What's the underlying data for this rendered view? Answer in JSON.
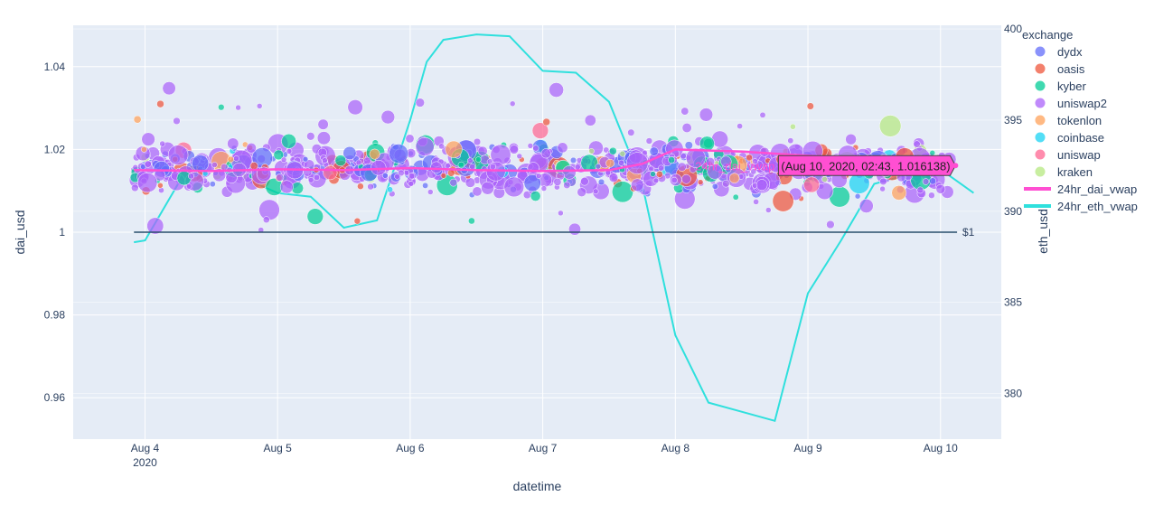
{
  "chart_data": {
    "type": "scatter",
    "xlabel": "datetime",
    "ylabel": "dai_usd",
    "y2label": "eth_usd",
    "legend_title": "exchange",
    "legend_position": "right",
    "grid": true,
    "x_range": [
      "2020-08-03 11:00",
      "2020-08-10 11:00"
    ],
    "x_ticks": [
      {
        "value": "2020-08-04",
        "label": "Aug 4",
        "sublabel": "2020"
      },
      {
        "value": "2020-08-05",
        "label": "Aug 5",
        "sublabel": ""
      },
      {
        "value": "2020-08-06",
        "label": "Aug 6",
        "sublabel": ""
      },
      {
        "value": "2020-08-07",
        "label": "Aug 7",
        "sublabel": ""
      },
      {
        "value": "2020-08-08",
        "label": "Aug 8",
        "sublabel": ""
      },
      {
        "value": "2020-08-09",
        "label": "Aug 9",
        "sublabel": ""
      },
      {
        "value": "2020-08-10",
        "label": "Aug 10",
        "sublabel": ""
      }
    ],
    "ylim": [
      0.95,
      1.05
    ],
    "y_ticks": [
      {
        "value": 0.96,
        "label": "0.96"
      },
      {
        "value": 0.98,
        "label": "0.98"
      },
      {
        "value": 1.0,
        "label": "1"
      },
      {
        "value": 1.02,
        "label": "1.02"
      },
      {
        "value": 1.04,
        "label": "1.04"
      }
    ],
    "y2lim": [
      377.5,
      400.2
    ],
    "y2_ticks": [
      {
        "value": 380,
        "label": "380"
      },
      {
        "value": 385,
        "label": "385"
      },
      {
        "value": 390,
        "label": "390"
      },
      {
        "value": 395,
        "label": "395"
      },
      {
        "value": 400,
        "label": "400"
      }
    ],
    "reference_line": {
      "y": 1.0,
      "label": "$1",
      "color": "#2a4e6c"
    },
    "hover_label": {
      "series": "24hr_dai_vwap",
      "text": "(Aug 10, 2020, 02:43, 1.016138)",
      "color": "#ff4fd2"
    },
    "exchanges": [
      {
        "name": "dydx",
        "color": "#636efa"
      },
      {
        "name": "oasis",
        "color": "#ef553b"
      },
      {
        "name": "kyber",
        "color": "#00cc96"
      },
      {
        "name": "uniswap2",
        "color": "#ab63fa"
      },
      {
        "name": "tokenlon",
        "color": "#ffa15a"
      },
      {
        "name": "coinbase",
        "color": "#19d3f3"
      },
      {
        "name": "uniswap",
        "color": "#ff6692"
      },
      {
        "name": "kraken",
        "color": "#b6e880"
      }
    ],
    "lines": [
      {
        "name": "24hr_dai_vwap",
        "color": "#ff4fd2",
        "axis": "y",
        "points": [
          [
            "2020-08-03 22:00",
            1.015
          ],
          [
            "2020-08-04 12:00",
            1.0148
          ],
          [
            "2020-08-05 00:00",
            1.0152
          ],
          [
            "2020-08-05 12:00",
            1.015
          ],
          [
            "2020-08-06 00:00",
            1.0155
          ],
          [
            "2020-08-06 12:00",
            1.015
          ],
          [
            "2020-08-07 00:00",
            1.0148
          ],
          [
            "2020-08-07 12:00",
            1.015
          ],
          [
            "2020-08-07 18:00",
            1.0165
          ],
          [
            "2020-08-08 00:00",
            1.02
          ],
          [
            "2020-08-08 12:00",
            1.0195
          ],
          [
            "2020-08-09 00:00",
            1.0185
          ],
          [
            "2020-08-09 12:00",
            1.0175
          ],
          [
            "2020-08-10 02:43",
            1.0161
          ]
        ]
      },
      {
        "name": "24hr_eth_vwap",
        "color": "#2fe0dd",
        "axis": "y2",
        "points": [
          [
            "2020-08-03 22:00",
            388.3
          ],
          [
            "2020-08-04 00:00",
            388.4
          ],
          [
            "2020-08-04 06:00",
            391.5
          ],
          [
            "2020-08-04 12:00",
            392.6
          ],
          [
            "2020-08-04 18:00",
            391.8
          ],
          [
            "2020-08-05 00:00",
            391.0
          ],
          [
            "2020-08-05 06:00",
            390.8
          ],
          [
            "2020-08-05 12:00",
            389.1
          ],
          [
            "2020-08-05 18:00",
            389.5
          ],
          [
            "2020-08-06 00:00",
            395.0
          ],
          [
            "2020-08-06 03:00",
            398.2
          ],
          [
            "2020-08-06 06:00",
            399.4
          ],
          [
            "2020-08-06 12:00",
            399.7
          ],
          [
            "2020-08-06 18:00",
            399.6
          ],
          [
            "2020-08-07 00:00",
            397.7
          ],
          [
            "2020-08-07 06:00",
            397.6
          ],
          [
            "2020-08-07 12:00",
            396.0
          ],
          [
            "2020-08-07 18:00",
            391.5
          ],
          [
            "2020-08-08 00:00",
            383.2
          ],
          [
            "2020-08-08 06:00",
            379.5
          ],
          [
            "2020-08-08 12:00",
            379.0
          ],
          [
            "2020-08-08 18:00",
            378.5
          ],
          [
            "2020-08-09 00:00",
            385.5
          ],
          [
            "2020-08-09 06:00",
            388.4
          ],
          [
            "2020-08-09 12:00",
            391.5
          ],
          [
            "2020-08-09 18:00",
            392.0
          ],
          [
            "2020-08-10 00:00",
            392.3
          ],
          [
            "2020-08-10 06:00",
            391.0
          ]
        ]
      }
    ]
  }
}
